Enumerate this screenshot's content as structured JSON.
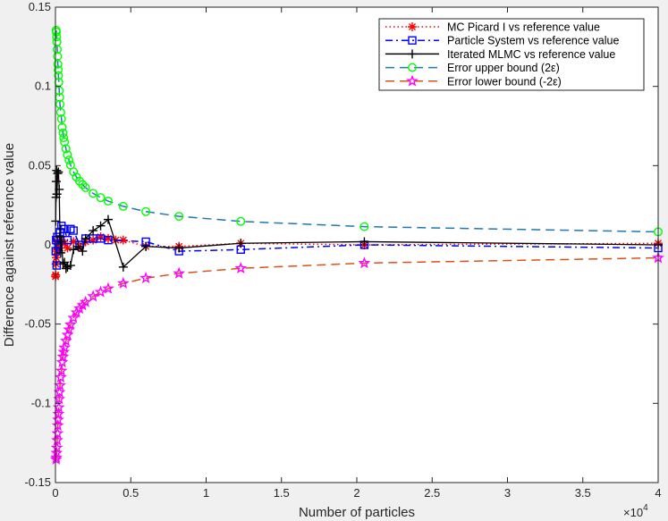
{
  "chart_data": {
    "type": "line",
    "xlabel": "Number of particles",
    "ylabel": "Difference against reference value",
    "x_exponent_label": "×10",
    "x_exponent_power": "4",
    "xlim": [
      0,
      40000
    ],
    "ylim": [
      -0.15,
      0.15
    ],
    "x_ticks": [
      0,
      5000,
      10000,
      15000,
      20000,
      25000,
      30000,
      35000,
      40000
    ],
    "x_tick_labels": [
      "0",
      "0.5",
      "1",
      "1.5",
      "2",
      "2.5",
      "3",
      "3.5",
      "4"
    ],
    "y_ticks": [
      -0.15,
      -0.1,
      -0.05,
      0,
      0.05,
      0.1,
      0.15
    ],
    "y_tick_labels": [
      "-0.15",
      "-0.1",
      "-0.05",
      "0",
      "0.05",
      "0.1",
      "0.15"
    ],
    "grid": false,
    "legend_position": "top-right",
    "series": [
      {
        "name": "MC Picard I vs reference value",
        "color": "#ff0000",
        "line": "dotted",
        "marker": "asterisk",
        "x": [
          10,
          20,
          40,
          60,
          80,
          100,
          140,
          200,
          300,
          400,
          600,
          800,
          1200,
          1600,
          2000,
          2500,
          3000,
          3500,
          4000,
          4500,
          6000,
          8200,
          12300,
          20500,
          40000
        ],
        "y": [
          -0.02,
          -0.019,
          -0.012,
          -0.008,
          -0.004,
          0.002,
          -0.003,
          0.001,
          -0.002,
          0.003,
          0.001,
          -0.002,
          0.002,
          -0.001,
          0.002,
          0.003,
          0.005,
          0.004,
          0.003,
          0.003,
          -0.001,
          -0.001,
          0.001,
          0.0,
          0.001
        ]
      },
      {
        "name": "Particle System vs reference value",
        "color": "#0000ff",
        "line": "dashdot",
        "marker": "square",
        "x": [
          20,
          50,
          80,
          120,
          200,
          300,
          400,
          600,
          800,
          1000,
          1200,
          1600,
          2000,
          2500,
          3000,
          3500,
          6000,
          8200,
          12300,
          20500,
          40000
        ],
        "y": [
          -0.004,
          0.003,
          -0.013,
          0.005,
          0.0,
          0.008,
          0.012,
          0.01,
          0.003,
          0.01,
          0.009,
          0.0,
          0.004,
          0.004,
          0.004,
          0.003,
          0.002,
          -0.004,
          -0.003,
          0.0,
          -0.002
        ]
      },
      {
        "name": "Iterated MLMC vs reference value",
        "color": "#000000",
        "line": "solid",
        "marker": "plus",
        "x": [
          20,
          40,
          60,
          80,
          100,
          150,
          200,
          250,
          300,
          350,
          400,
          500,
          600,
          700,
          800,
          1000,
          1200,
          1500,
          1800,
          2000,
          2500,
          3000,
          3500,
          4500,
          6000,
          8200,
          12300,
          20500,
          40000
        ],
        "y": [
          0.015,
          0.03,
          0.04,
          0.047,
          0.032,
          0.045,
          0.046,
          0.035,
          0.005,
          -0.005,
          0.002,
          -0.012,
          -0.011,
          -0.015,
          -0.014,
          -0.013,
          -0.003,
          -0.001,
          -0.004,
          0.004,
          0.009,
          0.012,
          0.016,
          -0.014,
          -0.001,
          -0.002,
          0.001,
          0.002,
          0.0
        ]
      },
      {
        "name": "Error upper bound (2ε)",
        "color": "#00ff00",
        "line_color": "#1f77b4",
        "line": "dashed",
        "marker": "circle",
        "x": [
          45,
          60,
          80,
          100,
          120,
          140,
          160,
          180,
          200,
          225,
          250,
          275,
          300,
          350,
          400,
          450,
          500,
          550,
          600,
          700,
          800,
          900,
          1000,
          1200,
          1400,
          1600,
          1800,
          2000,
          2500,
          3000,
          3500,
          4500,
          6000,
          8200,
          12300,
          20500,
          40000
        ],
        "y": [
          0.1354,
          0.1343,
          0.1313,
          0.1281,
          0.1233,
          0.119,
          0.114,
          0.1104,
          0.1068,
          0.1026,
          0.0973,
          0.093,
          0.0887,
          0.0836,
          0.0795,
          0.0741,
          0.0706,
          0.0676,
          0.0649,
          0.0606,
          0.0568,
          0.0535,
          0.0504,
          0.0461,
          0.0427,
          0.0402,
          0.0381,
          0.0361,
          0.0325,
          0.0298,
          0.0276,
          0.0243,
          0.021,
          0.018,
          0.0148,
          0.0115,
          0.0082
        ]
      },
      {
        "name": "Error lower bound (-2ε)",
        "color": "#ff00ff",
        "line_color": "#d95319",
        "line": "dashed",
        "marker": "star",
        "x": [
          45,
          60,
          80,
          100,
          120,
          140,
          160,
          180,
          200,
          225,
          250,
          275,
          300,
          350,
          400,
          450,
          500,
          550,
          600,
          700,
          800,
          900,
          1000,
          1200,
          1400,
          1600,
          1800,
          2000,
          2500,
          3000,
          3500,
          4500,
          6000,
          8200,
          12300,
          20500,
          40000
        ],
        "y": [
          -0.1354,
          -0.1343,
          -0.1313,
          -0.1281,
          -0.1233,
          -0.119,
          -0.114,
          -0.1104,
          -0.1068,
          -0.1026,
          -0.0973,
          -0.093,
          -0.0887,
          -0.0836,
          -0.0795,
          -0.0741,
          -0.0706,
          -0.0676,
          -0.0649,
          -0.0606,
          -0.0568,
          -0.0535,
          -0.0504,
          -0.0461,
          -0.0427,
          -0.0402,
          -0.0381,
          -0.0361,
          -0.0325,
          -0.0298,
          -0.0276,
          -0.0243,
          -0.021,
          -0.018,
          -0.0148,
          -0.0115,
          -0.0082
        ]
      }
    ]
  }
}
